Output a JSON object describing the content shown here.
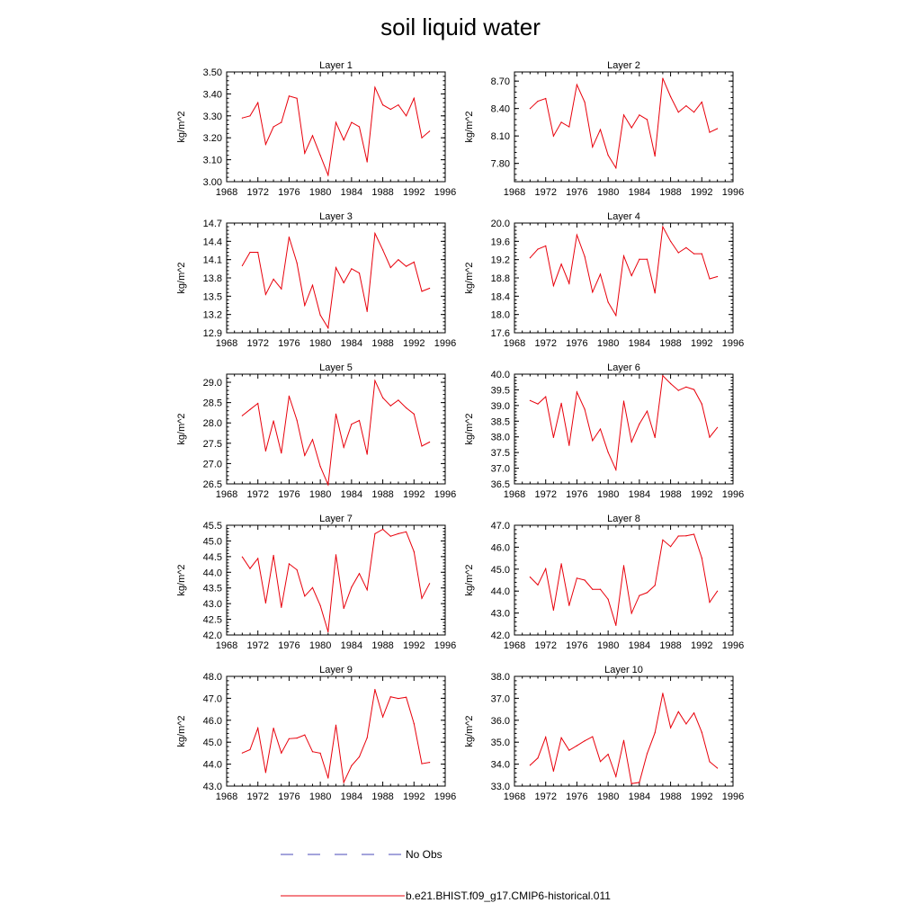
{
  "title": "soil liquid water",
  "legend": [
    {
      "label": "No Obs",
      "color": "#4a4ab8",
      "style": "dashed"
    },
    {
      "label": "b.e21.BHIST.f09_g17.CMIP6-historical.011",
      "color": "#e8000b",
      "style": "solid"
    }
  ],
  "chart_data": [
    {
      "type": "line",
      "title": "Layer 1",
      "ylabel": "kg/m^2",
      "xlim": [
        1968,
        1996
      ],
      "x_ticks": [
        "1968",
        "1972",
        "1976",
        "1980",
        "1984",
        "1988",
        "1992",
        "1996"
      ],
      "ylim": [
        3.0,
        3.5
      ],
      "y_ticks": [
        "3.00",
        "3.10",
        "3.20",
        "3.30",
        "3.40",
        "3.50"
      ],
      "series": [
        {
          "color": "#e8000b",
          "x": [
            1970,
            1971,
            1972,
            1973,
            1974,
            1975,
            1976,
            1977,
            1978,
            1979,
            1980,
            1981,
            1982,
            1983,
            1984,
            1985,
            1986,
            1987,
            1988,
            1989,
            1990,
            1991,
            1992,
            1993,
            1994
          ],
          "values": [
            3.29,
            3.3,
            3.36,
            3.17,
            3.25,
            3.27,
            3.39,
            3.38,
            3.13,
            3.21,
            3.12,
            3.03,
            3.27,
            3.19,
            3.27,
            3.25,
            3.09,
            3.43,
            3.35,
            3.33,
            3.35,
            3.3,
            3.38,
            3.2,
            3.23
          ]
        }
      ]
    },
    {
      "type": "line",
      "title": "Layer 2",
      "ylabel": "kg/m^2",
      "xlim": [
        1968,
        1996
      ],
      "x_ticks": [
        "1968",
        "1972",
        "1976",
        "1980",
        "1984",
        "1988",
        "1992",
        "1996"
      ],
      "ylim": [
        7.6,
        8.8
      ],
      "y_ticks": [
        "7.80",
        "8.10",
        "8.40",
        "8.70"
      ],
      "series": [
        {
          "color": "#e8000b",
          "x": [
            1970,
            1971,
            1972,
            1973,
            1974,
            1975,
            1976,
            1977,
            1978,
            1979,
            1980,
            1981,
            1982,
            1983,
            1984,
            1985,
            1986,
            1987,
            1988,
            1989,
            1990,
            1991,
            1992,
            1993,
            1994
          ],
          "values": [
            8.4,
            8.48,
            8.51,
            8.1,
            8.25,
            8.2,
            8.66,
            8.47,
            7.98,
            8.17,
            7.89,
            7.75,
            8.33,
            8.19,
            8.33,
            8.28,
            7.88,
            8.73,
            8.53,
            8.36,
            8.43,
            8.36,
            8.47,
            8.14,
            8.18
          ]
        }
      ]
    },
    {
      "type": "line",
      "title": "Layer 3",
      "ylabel": "kg/m^2",
      "xlim": [
        1968,
        1996
      ],
      "x_ticks": [
        "1968",
        "1972",
        "1976",
        "1980",
        "1984",
        "1988",
        "1992",
        "1996"
      ],
      "ylim": [
        12.9,
        14.7
      ],
      "y_ticks": [
        "12.9",
        "13.2",
        "13.5",
        "13.8",
        "14.1",
        "14.4",
        "14.7"
      ],
      "series": [
        {
          "color": "#e8000b",
          "x": [
            1970,
            1971,
            1972,
            1973,
            1974,
            1975,
            1976,
            1977,
            1978,
            1979,
            1980,
            1981,
            1982,
            1983,
            1984,
            1985,
            1986,
            1987,
            1988,
            1989,
            1990,
            1991,
            1992,
            1993,
            1994
          ],
          "values": [
            14.0,
            14.22,
            14.22,
            13.53,
            13.78,
            13.62,
            14.47,
            14.05,
            13.35,
            13.68,
            13.19,
            12.98,
            13.97,
            13.72,
            13.95,
            13.88,
            13.25,
            14.53,
            14.26,
            13.97,
            14.1,
            13.99,
            14.06,
            13.58,
            13.63
          ]
        }
      ]
    },
    {
      "type": "line",
      "title": "Layer 4",
      "ylabel": "kg/m^2",
      "xlim": [
        1968,
        1996
      ],
      "x_ticks": [
        "1968",
        "1972",
        "1976",
        "1980",
        "1984",
        "1988",
        "1992",
        "1996"
      ],
      "ylim": [
        17.6,
        20.0
      ],
      "y_ticks": [
        "17.6",
        "18.0",
        "18.4",
        "18.8",
        "19.2",
        "19.6",
        "20.0"
      ],
      "series": [
        {
          "color": "#e8000b",
          "x": [
            1970,
            1971,
            1972,
            1973,
            1974,
            1975,
            1976,
            1977,
            1978,
            1979,
            1980,
            1981,
            1982,
            1983,
            1984,
            1985,
            1986,
            1987,
            1988,
            1989,
            1990,
            1991,
            1992,
            1993,
            1994
          ],
          "values": [
            19.24,
            19.43,
            19.5,
            18.63,
            19.1,
            18.68,
            19.74,
            19.27,
            18.49,
            18.88,
            18.27,
            17.98,
            19.28,
            18.85,
            19.21,
            19.21,
            18.47,
            19.92,
            19.6,
            19.35,
            19.46,
            19.33,
            19.33,
            18.78,
            18.83
          ]
        }
      ]
    },
    {
      "type": "line",
      "title": "Layer 5",
      "ylabel": "kg/m^2",
      "xlim": [
        1968,
        1996
      ],
      "x_ticks": [
        "1968",
        "1972",
        "1976",
        "1980",
        "1984",
        "1988",
        "1992",
        "1996"
      ],
      "ylim": [
        26.5,
        29.2
      ],
      "y_ticks": [
        "26.5",
        "27.0",
        "27.5",
        "28.0",
        "28.5",
        "29.0"
      ],
      "series": [
        {
          "color": "#e8000b",
          "x": [
            1970,
            1971,
            1972,
            1973,
            1974,
            1975,
            1976,
            1977,
            1978,
            1979,
            1980,
            1981,
            1982,
            1983,
            1984,
            1985,
            1986,
            1987,
            1988,
            1989,
            1990,
            1991,
            1992,
            1993,
            1994
          ],
          "values": [
            28.18,
            28.33,
            28.48,
            27.31,
            28.05,
            27.26,
            28.66,
            28.07,
            27.2,
            27.59,
            26.93,
            26.48,
            28.22,
            27.4,
            27.97,
            28.06,
            27.23,
            29.04,
            28.62,
            28.42,
            28.56,
            28.37,
            28.22,
            27.43,
            27.53
          ]
        }
      ]
    },
    {
      "type": "line",
      "title": "Layer 6",
      "ylabel": "kg/m^2",
      "xlim": [
        1968,
        1996
      ],
      "x_ticks": [
        "1968",
        "1972",
        "1976",
        "1980",
        "1984",
        "1988",
        "1992",
        "1996"
      ],
      "ylim": [
        36.5,
        40.0
      ],
      "y_ticks": [
        "36.5",
        "37.0",
        "37.5",
        "38.0",
        "38.5",
        "39.0",
        "39.5",
        "40.0"
      ],
      "series": [
        {
          "color": "#e8000b",
          "x": [
            1970,
            1971,
            1972,
            1973,
            1974,
            1975,
            1976,
            1977,
            1978,
            1979,
            1980,
            1981,
            1982,
            1983,
            1984,
            1985,
            1986,
            1987,
            1988,
            1989,
            1990,
            1991,
            1992,
            1993,
            1994
          ],
          "values": [
            39.16,
            39.05,
            39.28,
            37.98,
            39.07,
            37.73,
            39.43,
            38.88,
            37.88,
            38.25,
            37.51,
            36.95,
            39.14,
            37.84,
            38.41,
            38.82,
            37.98,
            39.95,
            39.7,
            39.48,
            39.59,
            39.51,
            39.05,
            37.99,
            38.3
          ]
        }
      ]
    },
    {
      "type": "line",
      "title": "Layer 7",
      "ylabel": "kg/m^2",
      "xlim": [
        1968,
        1996
      ],
      "x_ticks": [
        "1968",
        "1972",
        "1976",
        "1980",
        "1984",
        "1988",
        "1992",
        "1996"
      ],
      "ylim": [
        42.0,
        45.5
      ],
      "y_ticks": [
        "42.0",
        "42.5",
        "43.0",
        "43.5",
        "44.0",
        "44.5",
        "45.0",
        "45.5"
      ],
      "series": [
        {
          "color": "#e8000b",
          "x": [
            1970,
            1971,
            1972,
            1973,
            1974,
            1975,
            1976,
            1977,
            1978,
            1979,
            1980,
            1981,
            1982,
            1983,
            1984,
            1985,
            1986,
            1987,
            1988,
            1989,
            1990,
            1991,
            1992,
            1993,
            1994
          ],
          "values": [
            44.49,
            44.12,
            44.44,
            43.02,
            44.54,
            42.88,
            44.27,
            44.08,
            43.24,
            43.51,
            42.94,
            42.1,
            44.56,
            42.85,
            43.53,
            43.96,
            43.44,
            45.23,
            45.37,
            45.15,
            45.23,
            45.29,
            44.66,
            43.17,
            43.64
          ]
        }
      ]
    },
    {
      "type": "line",
      "title": "Layer 8",
      "ylabel": "kg/m^2",
      "xlim": [
        1968,
        1996
      ],
      "x_ticks": [
        "1968",
        "1972",
        "1976",
        "1980",
        "1984",
        "1988",
        "1992",
        "1996"
      ],
      "ylim": [
        42.0,
        47.0
      ],
      "y_ticks": [
        "42.0",
        "43.0",
        "44.0",
        "45.0",
        "46.0",
        "47.0"
      ],
      "series": [
        {
          "color": "#e8000b",
          "x": [
            1970,
            1971,
            1972,
            1973,
            1974,
            1975,
            1976,
            1977,
            1978,
            1979,
            1980,
            1981,
            1982,
            1983,
            1984,
            1985,
            1986,
            1987,
            1988,
            1989,
            1990,
            1991,
            1992,
            1993,
            1994
          ],
          "values": [
            44.64,
            44.28,
            45.02,
            43.13,
            45.24,
            43.35,
            44.59,
            44.5,
            44.08,
            44.08,
            43.63,
            42.44,
            45.16,
            42.99,
            43.8,
            43.93,
            44.26,
            46.33,
            46.03,
            46.51,
            46.52,
            46.59,
            45.51,
            43.49,
            44.0
          ]
        }
      ]
    },
    {
      "type": "line",
      "title": "Layer 9",
      "ylabel": "kg/m^2",
      "xlim": [
        1968,
        1996
      ],
      "x_ticks": [
        "1968",
        "1972",
        "1976",
        "1980",
        "1984",
        "1988",
        "1992",
        "1996"
      ],
      "ylim": [
        43.0,
        48.0
      ],
      "y_ticks": [
        "43.0",
        "44.0",
        "45.0",
        "46.0",
        "47.0",
        "48.0"
      ],
      "series": [
        {
          "color": "#e8000b",
          "x": [
            1970,
            1971,
            1972,
            1973,
            1974,
            1975,
            1976,
            1977,
            1978,
            1979,
            1980,
            1981,
            1982,
            1983,
            1984,
            1985,
            1986,
            1987,
            1988,
            1989,
            1990,
            1991,
            1992,
            1993,
            1994
          ],
          "values": [
            44.51,
            44.66,
            45.64,
            43.62,
            45.64,
            44.51,
            45.16,
            45.19,
            45.33,
            44.57,
            44.5,
            43.37,
            45.78,
            43.17,
            43.93,
            44.33,
            45.2,
            47.4,
            46.15,
            47.07,
            46.99,
            47.05,
            45.85,
            44.02,
            44.08
          ]
        }
      ]
    },
    {
      "type": "line",
      "title": "Layer 10",
      "ylabel": "kg/m^2",
      "xlim": [
        1968,
        1996
      ],
      "x_ticks": [
        "1968",
        "1972",
        "1976",
        "1980",
        "1984",
        "1988",
        "1992",
        "1996"
      ],
      "ylim": [
        33.0,
        38.0
      ],
      "y_ticks": [
        "33.0",
        "34.0",
        "35.0",
        "36.0",
        "37.0",
        "38.0"
      ],
      "series": [
        {
          "color": "#e8000b",
          "x": [
            1970,
            1971,
            1972,
            1973,
            1974,
            1975,
            1976,
            1977,
            1978,
            1979,
            1980,
            1981,
            1982,
            1983,
            1984,
            1985,
            1986,
            1987,
            1988,
            1989,
            1990,
            1991,
            1992,
            1993,
            1994
          ],
          "values": [
            33.95,
            34.28,
            35.23,
            33.68,
            35.2,
            34.63,
            34.84,
            35.06,
            35.25,
            34.12,
            34.45,
            33.44,
            35.08,
            33.11,
            33.17,
            34.48,
            35.43,
            37.23,
            35.66,
            36.39,
            35.83,
            36.33,
            35.45,
            34.11,
            33.82
          ]
        }
      ]
    }
  ]
}
